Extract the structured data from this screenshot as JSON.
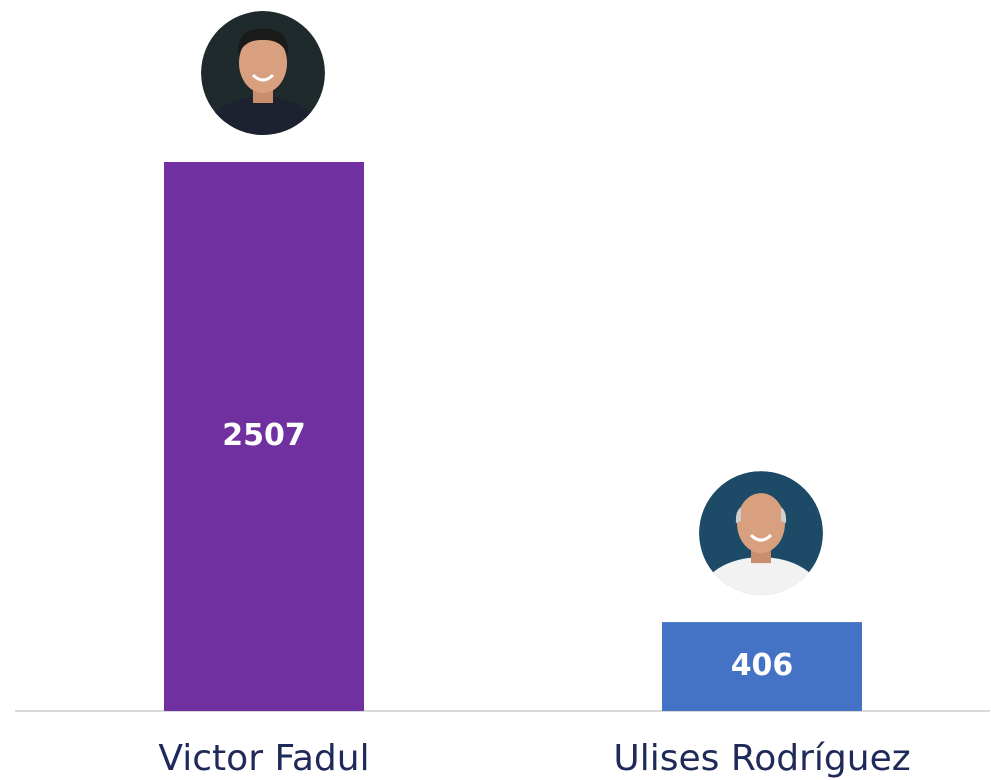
{
  "chart_data": {
    "type": "bar",
    "categories": [
      "Victor Fadul",
      "Ulises Rodríguez"
    ],
    "values": [
      2507,
      406
    ],
    "colors": [
      "#7030a0",
      "#4472c4"
    ]
  }
}
